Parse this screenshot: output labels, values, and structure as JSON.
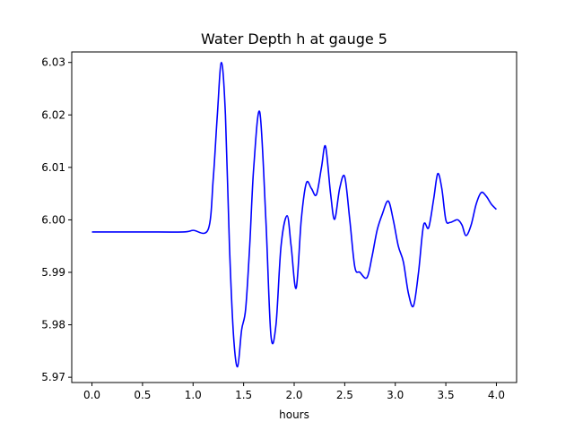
{
  "chart_data": {
    "type": "line",
    "title": "Water Depth h at gauge 5",
    "xlabel": "hours",
    "ylabel": "",
    "xlim": [
      -0.2,
      4.2
    ],
    "ylim": [
      5.969,
      6.032
    ],
    "x_ticks": [
      0.0,
      0.5,
      1.0,
      1.5,
      2.0,
      2.5,
      3.0,
      3.5,
      4.0
    ],
    "x_tick_labels": [
      "0.0",
      "0.5",
      "1.0",
      "1.5",
      "2.0",
      "2.5",
      "3.0",
      "3.5",
      "4.0"
    ],
    "y_ticks": [
      5.97,
      5.98,
      5.99,
      6.0,
      6.01,
      6.02,
      6.03
    ],
    "y_tick_labels": [
      "5.97",
      "5.98",
      "5.99",
      "6.00",
      "6.01",
      "6.02",
      "6.03"
    ],
    "grid": false,
    "series": [
      {
        "color": "#0000ff",
        "x": [
          0.0,
          0.5,
          0.9,
          1.0,
          1.15,
          1.2,
          1.24,
          1.28,
          1.32,
          1.36,
          1.4,
          1.44,
          1.48,
          1.52,
          1.56,
          1.6,
          1.66,
          1.72,
          1.77,
          1.82,
          1.87,
          1.93,
          1.97,
          2.02,
          2.07,
          2.12,
          2.17,
          2.22,
          2.27,
          2.31,
          2.36,
          2.4,
          2.45,
          2.5,
          2.55,
          2.6,
          2.65,
          2.72,
          2.77,
          2.82,
          2.87,
          2.93,
          2.98,
          3.03,
          3.08,
          3.13,
          3.18,
          3.23,
          3.28,
          3.33,
          3.38,
          3.42,
          3.46,
          3.5,
          3.54,
          3.58,
          3.62,
          3.66,
          3.7,
          3.75,
          3.8,
          3.85,
          3.9,
          3.95,
          4.0
        ],
        "y": [
          5.9977,
          5.9977,
          5.9977,
          5.998,
          5.9982,
          6.008,
          6.02,
          6.03,
          6.02,
          5.995,
          5.978,
          5.972,
          5.979,
          5.983,
          5.995,
          6.01,
          6.0205,
          6.0,
          5.978,
          5.98,
          5.995,
          6.0008,
          5.995,
          5.987,
          6.0,
          6.007,
          6.006,
          6.0048,
          6.01,
          6.014,
          6.005,
          6.0001,
          6.006,
          6.0082,
          6.0,
          5.991,
          5.99,
          5.989,
          5.993,
          5.998,
          6.001,
          6.0036,
          6.0,
          5.995,
          5.992,
          5.986,
          5.9836,
          5.99,
          5.999,
          5.9985,
          6.004,
          6.0088,
          6.006,
          6.0,
          5.9995,
          5.9998,
          6.0,
          5.999,
          5.997,
          5.999,
          6.003,
          6.0052,
          6.0045,
          6.003,
          6.002
        ]
      }
    ]
  }
}
